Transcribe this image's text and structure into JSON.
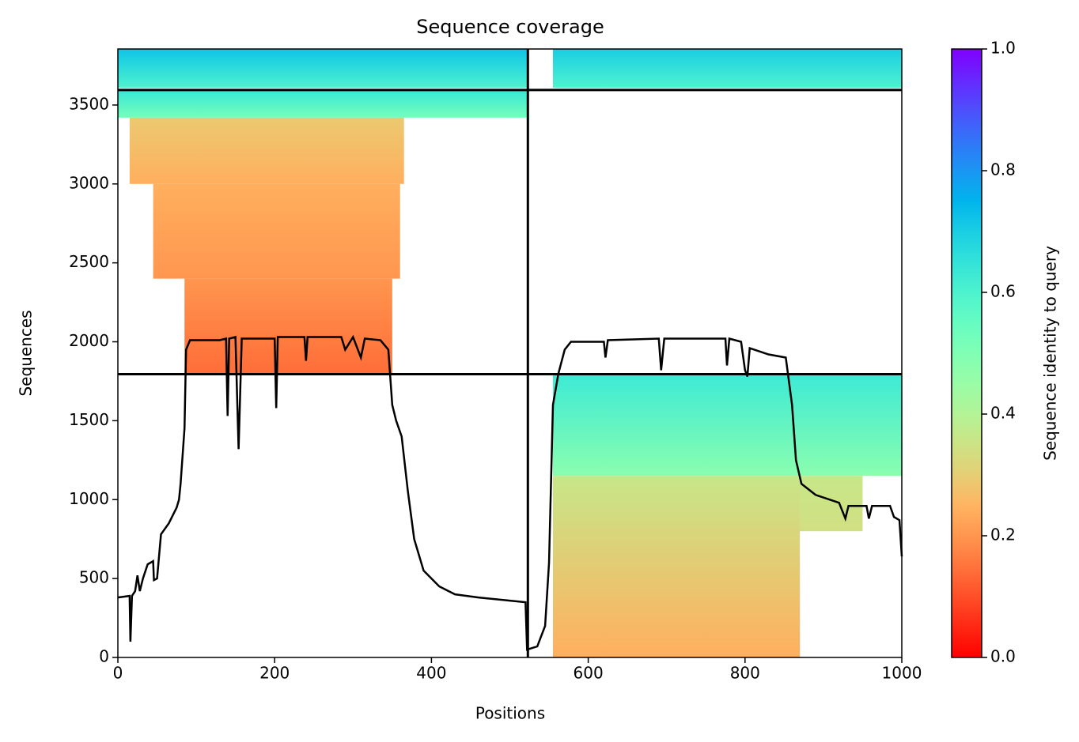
{
  "chart_data": {
    "type": "coverage",
    "title": "Sequence coverage",
    "xlabel": "Positions",
    "ylabel": "Sequences",
    "colorbar_label": "Sequence identity to query",
    "xlim": [
      0,
      1000
    ],
    "ylim": [
      0,
      3855
    ],
    "xticks": [
      0,
      200,
      400,
      600,
      800,
      1000
    ],
    "yticks": [
      0,
      500,
      1000,
      1500,
      2000,
      2500,
      3000,
      3500
    ],
    "clim": [
      0,
      1
    ],
    "cticks": [
      {
        "value": 0,
        "label": "0.0"
      },
      0.2,
      0.4,
      0.6,
      0.8,
      {
        "value": 1,
        "label": "1.0"
      }
    ],
    "colormap": "rainbow_r",
    "blocks": [
      {
        "x": [
          0,
          523
        ],
        "y": [
          3610,
          3855
        ],
        "identity": [
          0.6,
          0.72
        ]
      },
      {
        "x": [
          555,
          1000
        ],
        "y": [
          3610,
          3855
        ],
        "identity": [
          0.6,
          0.7
        ]
      },
      {
        "x": [
          0,
          523
        ],
        "y": [
          3420,
          3595
        ],
        "identity": [
          0.52,
          0.64
        ]
      },
      {
        "x": [
          15,
          365
        ],
        "y": [
          3000,
          3420
        ],
        "identity": [
          0.24,
          0.29
        ]
      },
      {
        "x": [
          45,
          360
        ],
        "y": [
          2400,
          3000
        ],
        "identity": [
          0.2,
          0.24
        ]
      },
      {
        "x": [
          85,
          350
        ],
        "y": [
          1795,
          2400
        ],
        "identity": [
          0.14,
          0.2
        ]
      },
      {
        "x": [
          555,
          1000
        ],
        "y": [
          1150,
          1795
        ],
        "identity": [
          0.48,
          0.63
        ]
      },
      {
        "x": [
          860,
          950
        ],
        "y": [
          800,
          1150
        ],
        "identity": [
          0.34,
          0.36
        ]
      },
      {
        "x": [
          555,
          870
        ],
        "y": [
          0,
          1150
        ],
        "identity": [
          0.24,
          0.36
        ]
      }
    ],
    "boundaries": {
      "x": [
        523
      ],
      "y": [
        1795,
        3595
      ]
    },
    "line": {
      "color": "#000000",
      "x": [
        0,
        15,
        16,
        18,
        22,
        25,
        28,
        32,
        38,
        45,
        46,
        50,
        55,
        65,
        75,
        78,
        80,
        85,
        87,
        92,
        130,
        138,
        140,
        142,
        150,
        154,
        158,
        200,
        202,
        204,
        238,
        240,
        242,
        285,
        290,
        300,
        310,
        315,
        335,
        345,
        350,
        355,
        362,
        370,
        378,
        390,
        410,
        430,
        460,
        500,
        520,
        522,
        535,
        545,
        550,
        555,
        562,
        570,
        578,
        620,
        622,
        625,
        690,
        693,
        697,
        775,
        777,
        780,
        795,
        800,
        803,
        806,
        830,
        852,
        860,
        865,
        872,
        890,
        920,
        928,
        932,
        955,
        958,
        962,
        985,
        990,
        997,
        1000
      ],
      "values": [
        380,
        390,
        100,
        390,
        420,
        520,
        420,
        500,
        590,
        610,
        490,
        500,
        780,
        850,
        950,
        1000,
        1100,
        1450,
        1950,
        2010,
        2010,
        2020,
        1530,
        2020,
        2030,
        1320,
        2020,
        2020,
        1580,
        2030,
        2030,
        1880,
        2030,
        2030,
        1950,
        2030,
        1900,
        2020,
        2010,
        1950,
        1600,
        1500,
        1400,
        1050,
        750,
        550,
        450,
        400,
        380,
        360,
        350,
        50,
        70,
        200,
        600,
        1600,
        1800,
        1950,
        2000,
        2000,
        1900,
        2010,
        2020,
        1820,
        2020,
        2020,
        1850,
        2020,
        2000,
        1820,
        1780,
        1960,
        1920,
        1900,
        1600,
        1250,
        1100,
        1030,
        980,
        880,
        960,
        960,
        880,
        960,
        960,
        890,
        870,
        640
      ]
    }
  }
}
